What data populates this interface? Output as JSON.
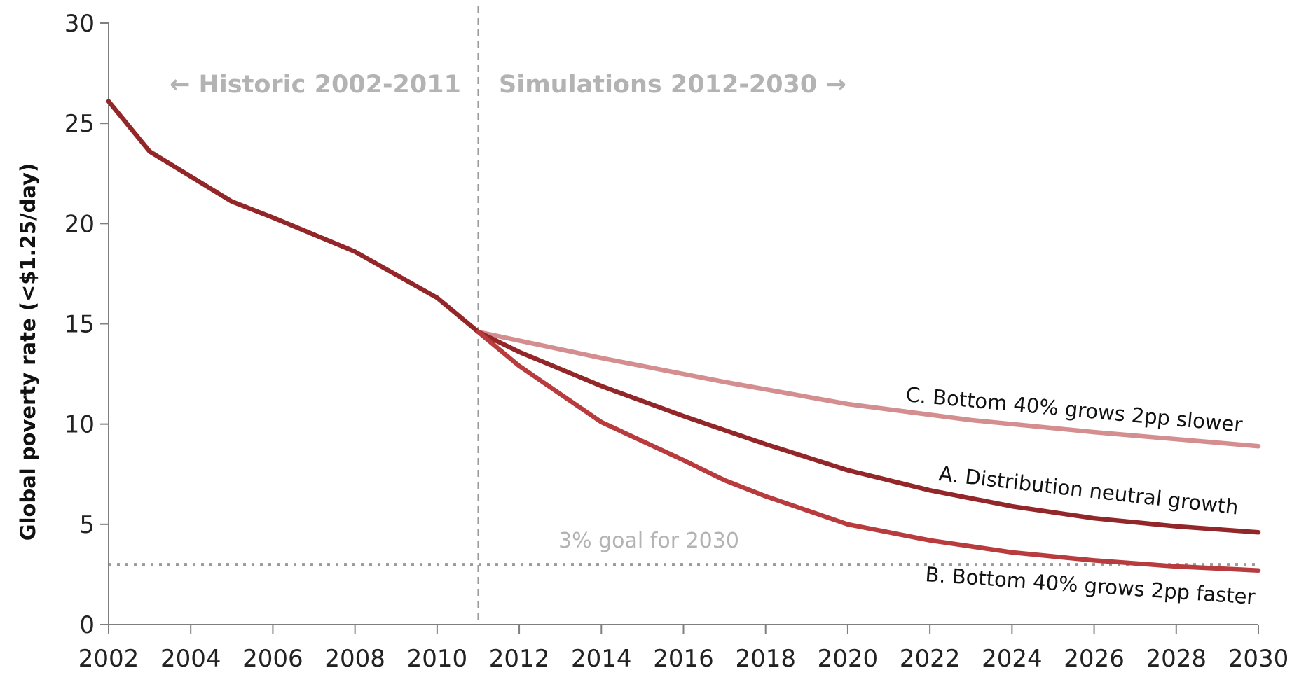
{
  "chart_data": {
    "type": "line",
    "title": "",
    "xlabel": "",
    "ylabel": "Global poverty rate (<$1.25/day)",
    "xlim": [
      2002,
      2030
    ],
    "ylim": [
      0,
      30
    ],
    "x_ticks": [
      2002,
      2004,
      2006,
      2008,
      2010,
      2012,
      2014,
      2016,
      2018,
      2020,
      2022,
      2024,
      2026,
      2028,
      2030
    ],
    "y_ticks": [
      0,
      5,
      10,
      15,
      20,
      25,
      30
    ],
    "grid": false,
    "legend": "none (series labelled inline at right end)",
    "divider_year": 2011,
    "period_labels": {
      "historic": "← Historic 2002-2011",
      "simulations": "Simulations 2012-2030 →"
    },
    "goal": {
      "value": 3,
      "label": "3% goal for 2030"
    },
    "historic_series": {
      "color": "#922628",
      "points": [
        [
          2002,
          26.1
        ],
        [
          2003,
          23.6
        ],
        [
          2005,
          21.1
        ],
        [
          2006,
          20.3
        ],
        [
          2008,
          18.6
        ],
        [
          2010,
          16.3
        ],
        [
          2011,
          14.6
        ]
      ]
    },
    "series": [
      {
        "name": "C. Bottom 40% grows 2pp slower",
        "color": "#d48e8f",
        "points": [
          [
            2011,
            14.6
          ],
          [
            2014,
            13.3
          ],
          [
            2017,
            12.1
          ],
          [
            2020,
            11.0
          ],
          [
            2023,
            10.2
          ],
          [
            2026,
            9.6
          ],
          [
            2030,
            8.9
          ]
        ]
      },
      {
        "name": "A. Distribution neutral  growth",
        "color": "#922628",
        "points": [
          [
            2011,
            14.6
          ],
          [
            2012,
            13.6
          ],
          [
            2014,
            11.9
          ],
          [
            2016,
            10.4
          ],
          [
            2018,
            9.0
          ],
          [
            2020,
            7.7
          ],
          [
            2022,
            6.7
          ],
          [
            2024,
            5.9
          ],
          [
            2026,
            5.3
          ],
          [
            2028,
            4.9
          ],
          [
            2030,
            4.6
          ]
        ]
      },
      {
        "name": "B. Bottom 40% grows 2pp faster",
        "color": "#b83b3d",
        "points": [
          [
            2011,
            14.6
          ],
          [
            2012,
            12.9
          ],
          [
            2014,
            10.1
          ],
          [
            2016,
            8.2
          ],
          [
            2017,
            7.2
          ],
          [
            2018,
            6.4
          ],
          [
            2020,
            5.0
          ],
          [
            2022,
            4.2
          ],
          [
            2024,
            3.6
          ],
          [
            2026,
            3.2
          ],
          [
            2028,
            2.9
          ],
          [
            2030,
            2.7
          ]
        ]
      }
    ]
  }
}
